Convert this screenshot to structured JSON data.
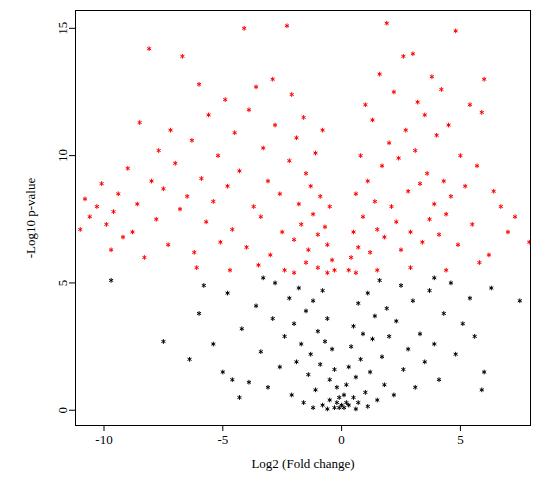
{
  "chart_data": {
    "type": "scatter",
    "xlabel": "Log2 (Fold change)",
    "ylabel": "-Log10 p-value",
    "xlim": [
      -11.2,
      7.95
    ],
    "ylim": [
      -0.6,
      15.7
    ],
    "xticks": [
      -10,
      -5,
      0,
      5
    ],
    "yticks": [
      0,
      5,
      10,
      15
    ],
    "grid": false,
    "marker": "asterisk",
    "series": [
      {
        "color": "#ff0000",
        "x": [
          -11.0,
          -10.8,
          -10.6,
          -10.3,
          -10.1,
          -9.9,
          -9.7,
          -9.6,
          -9.4,
          -9.2,
          -9.0,
          -8.8,
          -8.6,
          -8.5,
          -8.3,
          -8.1,
          -8.0,
          -7.8,
          -7.7,
          -7.5,
          -7.3,
          -7.2,
          -7.0,
          -6.8,
          -6.7,
          -6.5,
          -6.3,
          -6.2,
          -6.0,
          -5.9,
          -5.7,
          -5.6,
          -5.4,
          -5.2,
          -5.1,
          -4.9,
          -4.8,
          -4.6,
          -4.5,
          -4.3,
          -4.1,
          -4.0,
          -3.9,
          -3.7,
          -3.6,
          -3.4,
          -3.3,
          -3.1,
          -3.0,
          -2.9,
          -2.8,
          -2.6,
          -2.5,
          -2.3,
          -2.2,
          -2.1,
          -2.0,
          -1.9,
          -1.8,
          -1.7,
          -1.6,
          -1.5,
          -1.4,
          -1.3,
          -1.2,
          -1.1,
          -1.0,
          -0.9,
          -0.8,
          -0.7,
          -0.6,
          -0.5,
          -0.4,
          -0.3,
          -1.0,
          -2.4,
          -3.5,
          -4.7,
          -6.1,
          -0.6,
          -1.5,
          -2.0,
          0.3,
          0.4,
          0.5,
          0.6,
          0.7,
          0.8,
          0.9,
          1.0,
          1.1,
          1.2,
          1.3,
          1.4,
          1.5,
          1.6,
          1.7,
          1.8,
          1.9,
          2.0,
          2.1,
          2.2,
          2.3,
          2.4,
          2.5,
          2.6,
          2.7,
          2.8,
          2.9,
          3.0,
          3.1,
          3.2,
          3.3,
          3.4,
          3.5,
          3.6,
          3.7,
          3.8,
          3.9,
          4.0,
          4.1,
          4.2,
          4.3,
          4.4,
          4.5,
          4.6,
          4.8,
          4.9,
          5.0,
          5.2,
          5.4,
          5.5,
          5.7,
          5.9,
          6.0,
          6.2,
          6.4,
          6.7,
          7.0,
          7.3,
          7.9,
          5.8,
          0.6,
          1.5,
          2.9,
          4.4
        ],
        "values": [
          7.1,
          8.3,
          7.6,
          8.0,
          8.9,
          7.3,
          6.3,
          7.8,
          8.5,
          6.8,
          9.5,
          7.0,
          8.1,
          11.3,
          6.0,
          14.2,
          9.0,
          7.5,
          10.2,
          8.7,
          6.5,
          11.0,
          9.7,
          7.9,
          13.9,
          8.4,
          10.6,
          6.2,
          12.8,
          9.1,
          7.4,
          11.6,
          8.2,
          10.0,
          6.6,
          12.2,
          8.8,
          7.1,
          10.9,
          9.4,
          15.0,
          6.4,
          11.8,
          8.0,
          12.7,
          7.6,
          10.3,
          9.0,
          6.1,
          13.0,
          11.2,
          8.5,
          7.0,
          15.1,
          9.8,
          12.4,
          6.7,
          10.7,
          8.1,
          7.3,
          11.5,
          9.3,
          6.3,
          8.8,
          7.7,
          10.1,
          6.9,
          8.4,
          11.0,
          7.2,
          6.5,
          8.0,
          5.9,
          5.5,
          5.6,
          5.5,
          5.7,
          5.5,
          5.6,
          5.4,
          5.8,
          5.4,
          5.5,
          6.0,
          7.0,
          8.5,
          6.4,
          10.0,
          7.6,
          12.0,
          9.0,
          6.2,
          11.4,
          8.2,
          7.1,
          13.2,
          9.6,
          6.8,
          15.2,
          10.5,
          8.0,
          12.5,
          7.4,
          9.9,
          6.3,
          13.9,
          11.0,
          8.6,
          7.0,
          14.0,
          10.2,
          12.1,
          8.9,
          6.6,
          11.6,
          9.3,
          7.5,
          13.1,
          8.1,
          10.8,
          6.9,
          12.6,
          9.0,
          7.7,
          11.2,
          8.4,
          14.9,
          6.5,
          10.0,
          8.8,
          12.0,
          7.3,
          9.6,
          11.7,
          13.0,
          6.1,
          8.6,
          8.0,
          7.0,
          7.6,
          6.6,
          5.8,
          5.4,
          5.5,
          5.6,
          5.5
        ]
      },
      {
        "color": "#000000",
        "x": [
          -9.7,
          -7.5,
          -6.4,
          -6.0,
          -5.4,
          -5.0,
          -4.8,
          -4.3,
          -4.2,
          -3.9,
          -3.6,
          -3.4,
          -3.1,
          -2.9,
          -2.8,
          -2.6,
          -2.4,
          -2.2,
          -2.1,
          -2.0,
          -1.9,
          -1.8,
          -1.7,
          -1.6,
          -1.5,
          -1.4,
          -1.3,
          -1.2,
          -1.1,
          -1.0,
          -0.9,
          -0.8,
          -0.8,
          -0.7,
          -0.6,
          -0.5,
          -0.5,
          -0.4,
          -0.3,
          -0.3,
          -0.2,
          -0.2,
          -0.1,
          -0.1,
          0.0,
          0.1,
          0.1,
          0.2,
          0.2,
          0.3,
          0.3,
          0.4,
          0.5,
          0.5,
          0.6,
          0.7,
          0.7,
          0.8,
          0.9,
          1.0,
          1.1,
          1.2,
          1.3,
          1.4,
          1.5,
          1.6,
          1.7,
          1.8,
          1.9,
          2.0,
          2.2,
          2.3,
          2.5,
          2.6,
          2.8,
          3.0,
          3.1,
          3.3,
          3.5,
          3.7,
          3.9,
          4.1,
          4.3,
          4.6,
          4.8,
          5.1,
          5.4,
          5.9,
          6.0,
          6.3,
          7.5,
          5.6,
          -5.8,
          -4.6,
          -3.3,
          3.9,
          -1.2,
          1.1,
          -0.6,
          0.6
        ],
        "values": [
          5.1,
          2.7,
          2.0,
          3.8,
          2.6,
          1.5,
          4.6,
          0.5,
          3.2,
          1.1,
          4.1,
          2.3,
          0.9,
          3.6,
          5.0,
          1.7,
          2.9,
          4.4,
          0.6,
          3.4,
          1.9,
          4.8,
          2.6,
          0.3,
          3.9,
          1.4,
          2.2,
          4.3,
          0.8,
          3.1,
          1.8,
          4.7,
          0.2,
          2.7,
          3.6,
          1.2,
          0.4,
          2.4,
          1.6,
          0.1,
          0.9,
          0.3,
          0.5,
          0.1,
          0.2,
          0.1,
          0.6,
          0.3,
          1.0,
          1.7,
          0.2,
          2.5,
          0.5,
          3.3,
          1.3,
          4.2,
          0.3,
          2.0,
          3.0,
          0.7,
          4.6,
          1.5,
          2.8,
          3.7,
          0.4,
          5.1,
          2.1,
          1.0,
          4.0,
          2.9,
          0.6,
          3.5,
          4.9,
          1.6,
          2.4,
          4.3,
          0.9,
          3.0,
          1.9,
          4.7,
          2.6,
          1.2,
          3.8,
          5.0,
          2.2,
          3.4,
          4.4,
          0.8,
          1.5,
          4.8,
          4.3,
          2.9,
          4.9,
          1.2,
          5.2,
          5.2,
          0.1,
          0.15,
          0.05,
          0.05
        ]
      }
    ]
  }
}
